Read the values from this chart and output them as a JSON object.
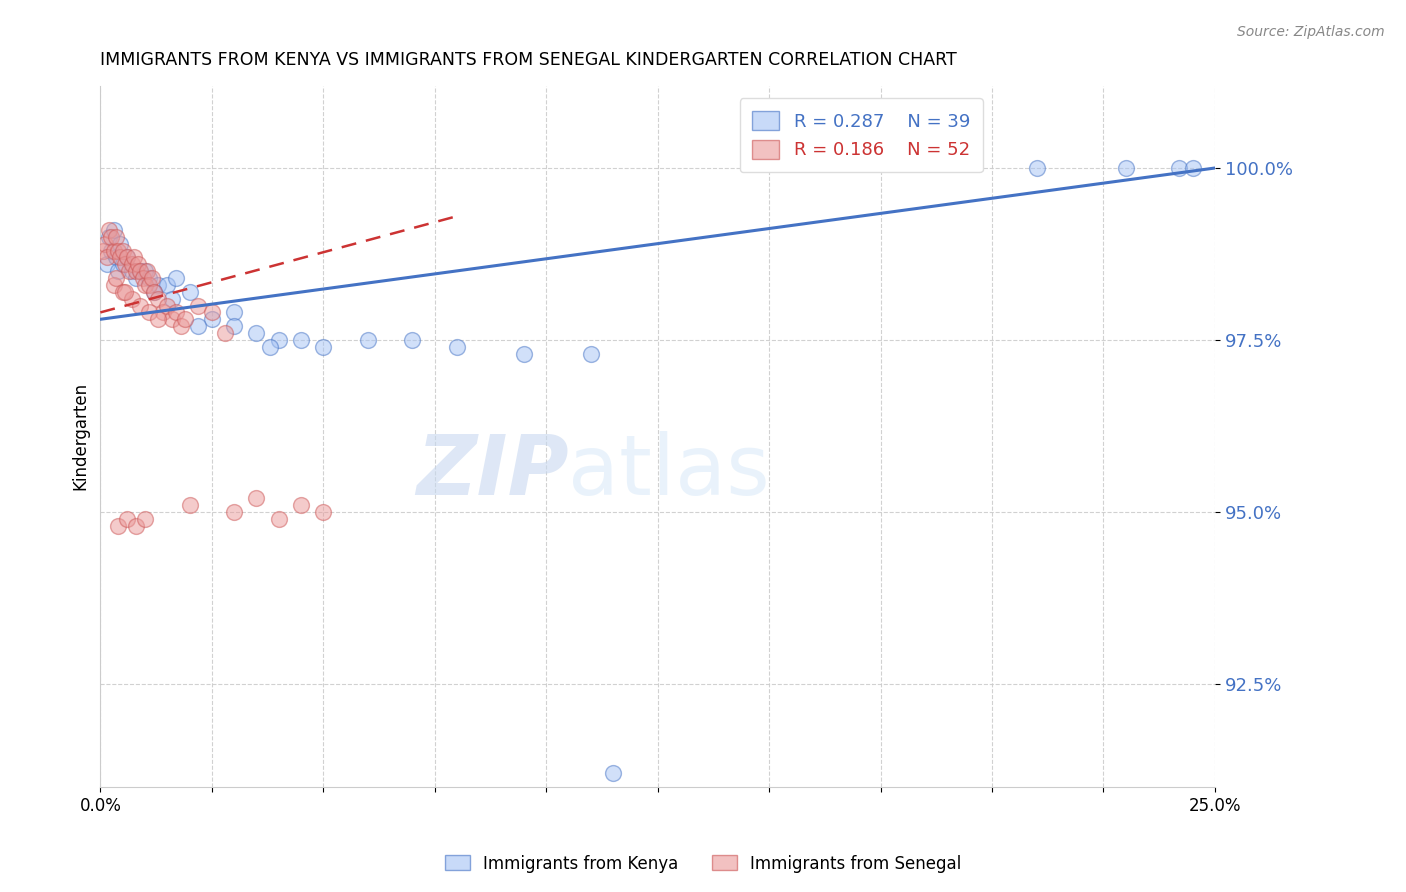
{
  "title": "IMMIGRANTS FROM KENYA VS IMMIGRANTS FROM SENEGAL KINDERGARTEN CORRELATION CHART",
  "source": "Source: ZipAtlas.com",
  "ylabel": "Kindergarten",
  "ylabel_right_ticks": [
    100.0,
    97.5,
    95.0,
    92.5
  ],
  "xlim": [
    0.0,
    25.0
  ],
  "ylim": [
    91.0,
    101.2
  ],
  "kenya_R": 0.287,
  "kenya_N": 39,
  "senegal_R": 0.186,
  "senegal_N": 52,
  "kenya_color": "#a4c2f4",
  "senegal_color": "#ea9999",
  "kenya_trend_color": "#4472c4",
  "senegal_trend_color": "#cc3333",
  "kenya_scatter_x": [
    0.15,
    0.2,
    0.25,
    0.3,
    0.35,
    0.4,
    0.45,
    0.5,
    0.6,
    0.7,
    0.8,
    0.9,
    1.0,
    1.1,
    1.3,
    1.5,
    1.7,
    2.0,
    2.5,
    3.0,
    3.5,
    4.0,
    4.5,
    5.0,
    6.0,
    7.0,
    8.0,
    9.5,
    11.0,
    1.2,
    1.6,
    2.2,
    3.0,
    3.8,
    11.5,
    21.0,
    23.0,
    24.2,
    24.5
  ],
  "kenya_scatter_y": [
    98.6,
    99.0,
    98.8,
    99.1,
    98.7,
    98.5,
    98.9,
    98.6,
    98.7,
    98.5,
    98.4,
    98.5,
    98.5,
    98.4,
    98.3,
    98.3,
    98.4,
    98.2,
    97.8,
    97.9,
    97.6,
    97.5,
    97.5,
    97.4,
    97.5,
    97.5,
    97.4,
    97.3,
    97.3,
    98.2,
    98.1,
    97.7,
    97.7,
    97.4,
    91.2,
    100.0,
    100.0,
    100.0,
    100.0
  ],
  "senegal_scatter_x": [
    0.05,
    0.1,
    0.15,
    0.2,
    0.25,
    0.3,
    0.35,
    0.4,
    0.45,
    0.5,
    0.55,
    0.6,
    0.65,
    0.7,
    0.75,
    0.8,
    0.85,
    0.9,
    0.95,
    1.0,
    1.05,
    1.1,
    1.15,
    1.2,
    1.3,
    1.4,
    1.5,
    1.6,
    1.7,
    1.8,
    1.9,
    2.0,
    2.2,
    2.5,
    2.8,
    3.0,
    3.5,
    4.0,
    4.5,
    5.0,
    0.3,
    0.5,
    0.7,
    0.9,
    1.1,
    1.3,
    0.4,
    0.6,
    0.8,
    1.0,
    0.35,
    0.55
  ],
  "senegal_scatter_y": [
    98.8,
    98.9,
    98.7,
    99.1,
    99.0,
    98.8,
    99.0,
    98.8,
    98.7,
    98.8,
    98.6,
    98.7,
    98.5,
    98.6,
    98.7,
    98.5,
    98.6,
    98.5,
    98.4,
    98.3,
    98.5,
    98.3,
    98.4,
    98.2,
    98.1,
    97.9,
    98.0,
    97.8,
    97.9,
    97.7,
    97.8,
    95.1,
    98.0,
    97.9,
    97.6,
    95.0,
    95.2,
    94.9,
    95.1,
    95.0,
    98.3,
    98.2,
    98.1,
    98.0,
    97.9,
    97.8,
    94.8,
    94.9,
    94.8,
    94.9,
    98.4,
    98.2
  ],
  "watermark_zip": "ZIP",
  "watermark_atlas": "atlas",
  "background_color": "#ffffff",
  "grid_color": "#cccccc",
  "kenya_trend_x": [
    0.0,
    25.0
  ],
  "kenya_trend_y": [
    97.8,
    100.0
  ],
  "senegal_trend_x": [
    0.0,
    8.0
  ],
  "senegal_trend_y": [
    97.9,
    99.3
  ]
}
